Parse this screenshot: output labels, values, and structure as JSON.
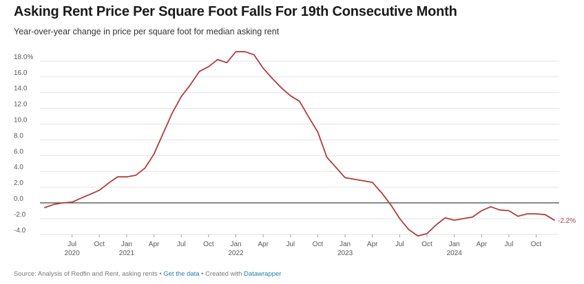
{
  "header": {
    "title": "Asking Rent Price Per Square Foot Falls For 19th Consecutive Month",
    "subtitle": "Year-over-year change in price per square foot for median asking rent"
  },
  "footer": {
    "source": "Source: Analysis of Redfin and Rent. asking rents",
    "sep1": " • ",
    "get_data": "Get the data",
    "sep2": " • Created with ",
    "datawrapper": "Datawrapper"
  },
  "chart_data": {
    "type": "line",
    "title": "Asking Rent Price Per Square Foot Falls For 19th Consecutive Month",
    "subtitle": "Year-over-year change in price per square foot for median asking rent",
    "ylim": [
      -4.0,
      19.5
    ],
    "y_ticks": [
      "18.0%",
      "16.0",
      "14.0",
      "12.0",
      "10.0",
      "8.0",
      "6.0",
      "4.0",
      "2.0",
      "0.0",
      "-2.0",
      "-4.0"
    ],
    "y_tick_values": [
      18,
      16,
      14,
      12,
      10,
      8,
      6,
      4,
      2,
      0,
      -2,
      -4
    ],
    "x_ticks": [
      {
        "month": "Jul",
        "year": "2020",
        "date": "2020-07"
      },
      {
        "month": "Oct",
        "year": "",
        "date": "2020-10"
      },
      {
        "month": "Jan",
        "year": "2021",
        "date": "2021-01"
      },
      {
        "month": "Apr",
        "year": "",
        "date": "2021-04"
      },
      {
        "month": "Jul",
        "year": "",
        "date": "2021-07"
      },
      {
        "month": "Oct",
        "year": "",
        "date": "2021-10"
      },
      {
        "month": "Jan",
        "year": "2022",
        "date": "2022-01"
      },
      {
        "month": "Apr",
        "year": "",
        "date": "2022-04"
      },
      {
        "month": "Jul",
        "year": "",
        "date": "2022-07"
      },
      {
        "month": "Oct",
        "year": "",
        "date": "2022-10"
      },
      {
        "month": "Jan",
        "year": "2023",
        "date": "2023-01"
      },
      {
        "month": "Apr",
        "year": "",
        "date": "2023-04"
      },
      {
        "month": "Jul",
        "year": "",
        "date": "2023-07"
      },
      {
        "month": "Oct",
        "year": "",
        "date": "2023-10"
      },
      {
        "month": "Jan",
        "year": "2024",
        "date": "2024-01"
      },
      {
        "month": "Apr",
        "year": "",
        "date": "2024-04"
      },
      {
        "month": "Jul",
        "year": "",
        "date": "2024-07"
      },
      {
        "month": "Oct",
        "year": "",
        "date": "2024-10"
      }
    ],
    "series": [
      {
        "color": "#b33a3a",
        "end_label": "-2.2%",
        "points": [
          [
            "2020-04",
            -0.6
          ],
          [
            "2020-05",
            -0.2
          ],
          [
            "2020-06",
            0.0
          ],
          [
            "2020-07",
            0.1
          ],
          [
            "2020-08",
            0.6
          ],
          [
            "2020-09",
            1.1
          ],
          [
            "2020-10",
            1.6
          ],
          [
            "2020-11",
            2.5
          ],
          [
            "2020-12",
            3.3
          ],
          [
            "2021-01",
            3.3
          ],
          [
            "2021-02",
            3.5
          ],
          [
            "2021-03",
            4.4
          ],
          [
            "2021-04",
            6.2
          ],
          [
            "2021-05",
            8.8
          ],
          [
            "2021-06",
            11.4
          ],
          [
            "2021-07",
            13.5
          ],
          [
            "2021-08",
            15.0
          ],
          [
            "2021-09",
            16.7
          ],
          [
            "2021-10",
            17.3
          ],
          [
            "2021-11",
            18.2
          ],
          [
            "2021-12",
            17.8
          ],
          [
            "2022-01",
            19.2
          ],
          [
            "2022-02",
            19.2
          ],
          [
            "2022-03",
            18.8
          ],
          [
            "2022-04",
            17.1
          ],
          [
            "2022-05",
            15.8
          ],
          [
            "2022-06",
            14.6
          ],
          [
            "2022-07",
            13.6
          ],
          [
            "2022-08",
            12.9
          ],
          [
            "2022-09",
            10.9
          ],
          [
            "2022-10",
            9.0
          ],
          [
            "2022-11",
            5.8
          ],
          [
            "2022-12",
            4.5
          ],
          [
            "2023-01",
            3.2
          ],
          [
            "2023-02",
            3.0
          ],
          [
            "2023-03",
            2.8
          ],
          [
            "2023-04",
            2.6
          ],
          [
            "2023-05",
            1.3
          ],
          [
            "2023-06",
            -0.2
          ],
          [
            "2023-07",
            -2.0
          ],
          [
            "2023-08",
            -3.4
          ],
          [
            "2023-09",
            -4.2
          ],
          [
            "2023-10",
            -3.9
          ],
          [
            "2023-11",
            -2.8
          ],
          [
            "2023-12",
            -1.9
          ],
          [
            "2024-01",
            -2.2
          ],
          [
            "2024-02",
            -2.0
          ],
          [
            "2024-03",
            -1.8
          ],
          [
            "2024-04",
            -1.0
          ],
          [
            "2024-05",
            -0.5
          ],
          [
            "2024-06",
            -0.9
          ],
          [
            "2024-07",
            -1.0
          ],
          [
            "2024-08",
            -1.7
          ],
          [
            "2024-09",
            -1.4
          ],
          [
            "2024-10",
            -1.4
          ],
          [
            "2024-11",
            -1.5
          ],
          [
            "2024-12",
            -2.2
          ]
        ]
      }
    ],
    "grid": true,
    "legend": "none"
  }
}
